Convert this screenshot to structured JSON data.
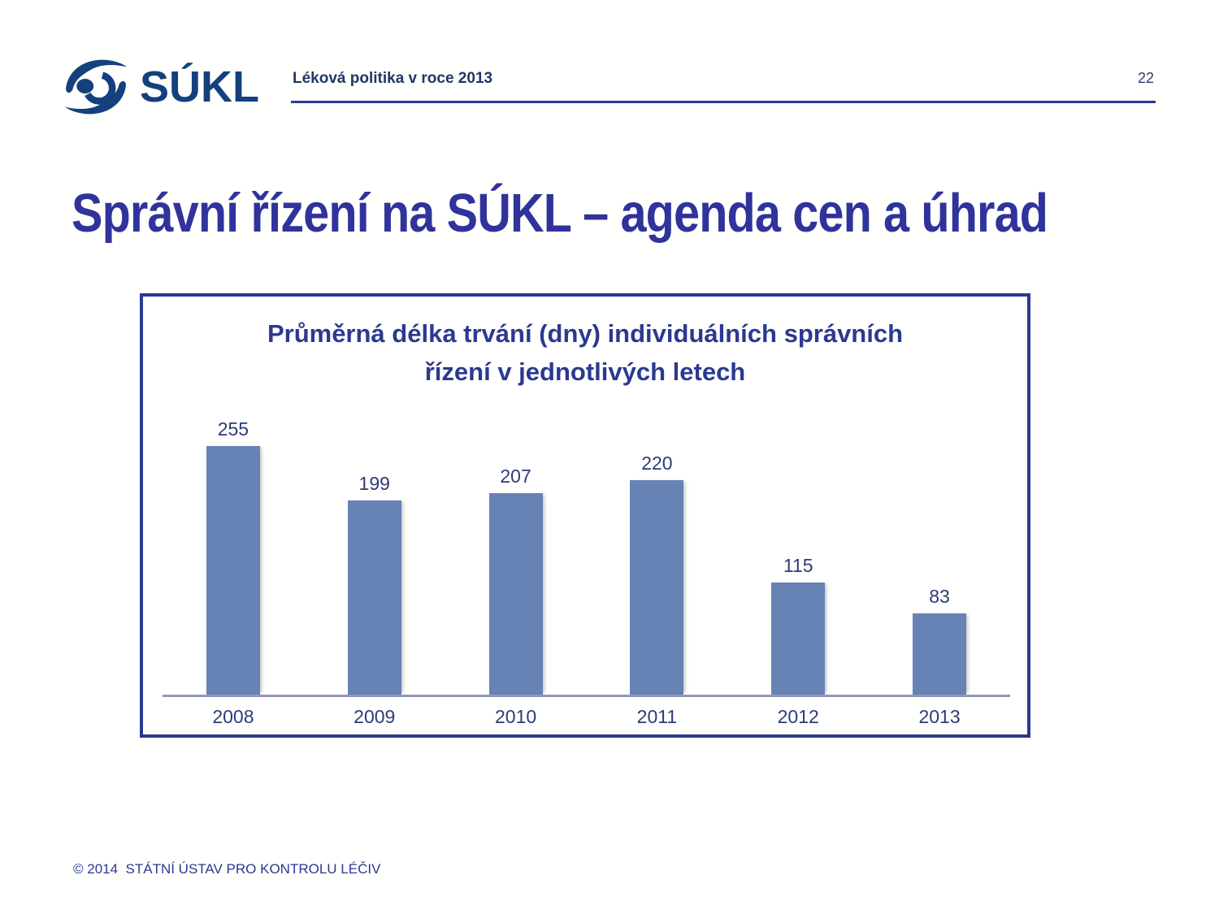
{
  "header": {
    "logo_text": "SÚKL",
    "title": "Léková politika v roce 2013",
    "page_number": "22"
  },
  "slide": {
    "title": "Správní řízení na SÚKL – agenda cen a úhrad"
  },
  "chart_data": {
    "type": "bar",
    "title": "Průměrná délka trvání (dny) individuálních správních řízení v jednotlivých letech",
    "title_lines": [
      "Průměrná délka trvání (dny) individuálních správních",
      "řízení v jednotlivých letech"
    ],
    "categories": [
      "2008",
      "2009",
      "2010",
      "2011",
      "2012",
      "2013"
    ],
    "values": [
      255,
      199,
      207,
      220,
      115,
      83
    ],
    "xlabel": "",
    "ylabel": "",
    "ylim": [
      0,
      280
    ],
    "grid": false,
    "legend": false,
    "data_labels": true,
    "bar_color": "#6783b5"
  },
  "footer": {
    "copyright": "© 2014  STÁTNÍ ÚSTAV PRO KONTROLU LÉČIV"
  },
  "colors": {
    "accent_indigo": "#2b3990",
    "navy": "#1f3864",
    "logo_navy": "#14407e",
    "title_indigo": "#30339b",
    "bar_blue": "#6783b5",
    "axis_gray": "#9398b6",
    "label_blue": "#2e3b76"
  }
}
